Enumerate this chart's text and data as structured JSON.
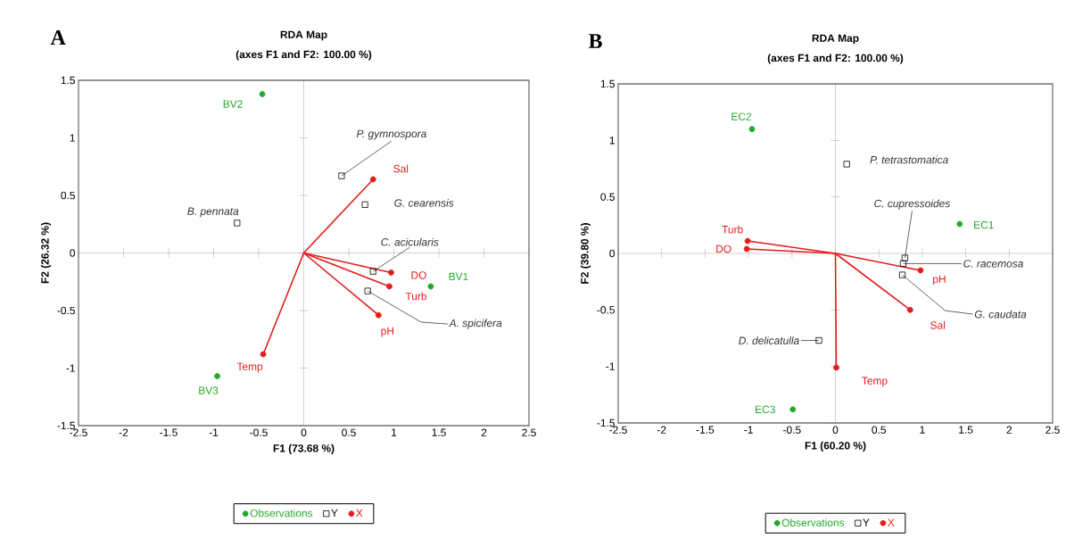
{
  "chart_data": [
    {
      "type": "scatter",
      "title": "RDA Map",
      "subtitle": "(axes F1 and F2: 100.00 %)",
      "xlabel": "F1 (73.68 %)",
      "ylabel": "F2 (26.32 %)",
      "xlim": [
        -2.5,
        2.5
      ],
      "ylim": [
        -1.5,
        1.5
      ],
      "xticks": [
        -2.5,
        -2,
        -1.5,
        -1,
        -0.5,
        0,
        0.5,
        1,
        1.5,
        2,
        2.5
      ],
      "yticks": [
        -1.5,
        -1,
        -0.5,
        0,
        0.5,
        1,
        1.5
      ],
      "legend": "bottom",
      "series": [
        {
          "type": "line",
          "color": "#e31c1c",
          "line_style": "solid",
          "x": [
            0,
            0.77
          ],
          "values": [
            0,
            0.64
          ]
        },
        {
          "type": "line",
          "color": "#e31c1c",
          "line_style": "solid",
          "x": [
            0,
            0.97
          ],
          "values": [
            0,
            -0.17
          ]
        },
        {
          "type": "line",
          "color": "#e31c1c",
          "line_style": "solid",
          "x": [
            0,
            0.95
          ],
          "values": [
            0,
            -0.29
          ]
        },
        {
          "type": "line",
          "color": "#e31c1c",
          "line_style": "solid",
          "x": [
            0,
            0.83
          ],
          "values": [
            0,
            -0.54
          ]
        },
        {
          "type": "line",
          "color": "#e31c1c",
          "line_style": "solid",
          "x": [
            0,
            -0.45
          ],
          "values": [
            0,
            -0.88
          ]
        },
        {
          "name": "Observations",
          "color": "#22a82b",
          "marker": "circle",
          "x": [
            -0.46,
            1.41,
            -0.96
          ],
          "values": [
            1.38,
            -0.29,
            -1.07
          ]
        },
        {
          "name": "Y",
          "color": "#000000",
          "marker": "square",
          "x": [
            0.42,
            0.68,
            -0.74,
            0.77,
            0.71
          ],
          "values": [
            0.67,
            0.42,
            0.26,
            -0.16,
            -0.33
          ]
        },
        {
          "name": "X",
          "color": "#e31c1c",
          "marker": "circle",
          "x": [
            0.77,
            0.97,
            0.95,
            0.83,
            -0.45
          ],
          "values": [
            0.64,
            -0.17,
            -0.29,
            -0.54,
            -0.88
          ]
        }
      ],
      "annotations": [
        "A",
        {
          "text": "BV2",
          "x": -0.46,
          "y": 1.38
        },
        {
          "text": "BV1",
          "x": 1.41,
          "y": -0.29
        },
        {
          "text": "BV3",
          "x": -0.96,
          "y": -1.07
        },
        {
          "text": "P. gymnospora",
          "x": 0.42,
          "y": 0.67
        },
        {
          "text": "G. cearensis",
          "x": 0.68,
          "y": 0.42
        },
        {
          "text": "B. pennata",
          "x": -0.74,
          "y": 0.26
        },
        {
          "text": "C. acicularis",
          "x": 0.77,
          "y": -0.16
        },
        {
          "text": "A. spicifera",
          "x": 0.71,
          "y": -0.33
        },
        {
          "text": "Sal",
          "x": 0.77,
          "y": 0.64
        },
        {
          "text": "DO",
          "x": 0.97,
          "y": -0.17
        },
        {
          "text": "Turb",
          "x": 0.95,
          "y": -0.29
        },
        {
          "text": "pH",
          "x": 0.83,
          "y": -0.54
        },
        {
          "text": "Temp",
          "x": -0.45,
          "y": -0.88
        }
      ]
    },
    {
      "type": "scatter",
      "title": "RDA Map",
      "subtitle": "(axes F1 and F2: 100.00 %)",
      "xlabel": "F1 (60.20 %)",
      "ylabel": "F2 (39.80 %)",
      "xlim": [
        -2.5,
        2.5
      ],
      "ylim": [
        -1.5,
        1.5
      ],
      "xticks": [
        -2.5,
        -2,
        -1.5,
        -1,
        -0.5,
        0,
        0.5,
        1,
        1.5,
        2,
        2.5
      ],
      "yticks": [
        -1.5,
        -1,
        -0.5,
        0,
        0.5,
        1,
        1.5
      ],
      "legend": "bottom",
      "series": [
        {
          "type": "line",
          "color": "#e31c1c",
          "line_style": "solid",
          "x": [
            0,
            -1.01
          ],
          "values": [
            0,
            0.11
          ]
        },
        {
          "type": "line",
          "color": "#e31c1c",
          "line_style": "solid",
          "x": [
            0,
            -1.02
          ],
          "values": [
            0,
            0.04
          ]
        },
        {
          "type": "line",
          "color": "#e31c1c",
          "line_style": "solid",
          "x": [
            0,
            0.98
          ],
          "values": [
            0,
            -0.15
          ]
        },
        {
          "type": "line",
          "color": "#e31c1c",
          "line_style": "solid",
          "x": [
            0,
            0.86
          ],
          "values": [
            0,
            -0.5
          ]
        },
        {
          "type": "line",
          "color": "#e31c1c",
          "line_style": "solid",
          "x": [
            0,
            0.01
          ],
          "values": [
            0,
            -1.01
          ]
        },
        {
          "name": "Observations",
          "color": "#22a82b",
          "marker": "circle",
          "x": [
            -0.96,
            1.43,
            -0.49
          ],
          "values": [
            1.1,
            0.26,
            -1.38
          ]
        },
        {
          "name": "Y",
          "color": "#000000",
          "marker": "square",
          "x": [
            0.13,
            0.8,
            0.78,
            0.77,
            -0.19
          ],
          "values": [
            0.79,
            -0.04,
            -0.09,
            -0.19,
            -0.77
          ]
        },
        {
          "name": "X",
          "color": "#e31c1c",
          "marker": "circle",
          "x": [
            -1.01,
            -1.02,
            0.98,
            0.86,
            0.01
          ],
          "values": [
            0.11,
            0.04,
            -0.15,
            -0.5,
            -1.01
          ]
        }
      ],
      "annotations": [
        "B",
        {
          "text": "EC2",
          "x": -0.96,
          "y": 1.1
        },
        {
          "text": "EC1",
          "x": 1.43,
          "y": 0.26
        },
        {
          "text": "EC3",
          "x": -0.49,
          "y": -1.38
        },
        {
          "text": "P. tetrastomatica",
          "x": 0.13,
          "y": 0.79
        },
        {
          "text": "C. cupressoides",
          "x": 0.8,
          "y": -0.04
        },
        {
          "text": "C. racemosa",
          "x": 0.78,
          "y": -0.09
        },
        {
          "text": "G. caudata",
          "x": 0.77,
          "y": -0.19
        },
        {
          "text": "D. delicatulla",
          "x": -0.19,
          "y": -0.77
        },
        {
          "text": "Turb",
          "x": -1.01,
          "y": 0.11
        },
        {
          "text": "DO",
          "x": -1.02,
          "y": 0.04
        },
        {
          "text": "pH",
          "x": 0.98,
          "y": -0.15
        },
        {
          "text": "Sal",
          "x": 0.86,
          "y": -0.5
        },
        {
          "text": "Temp",
          "x": 0.01,
          "y": -1.01
        }
      ]
    }
  ]
}
